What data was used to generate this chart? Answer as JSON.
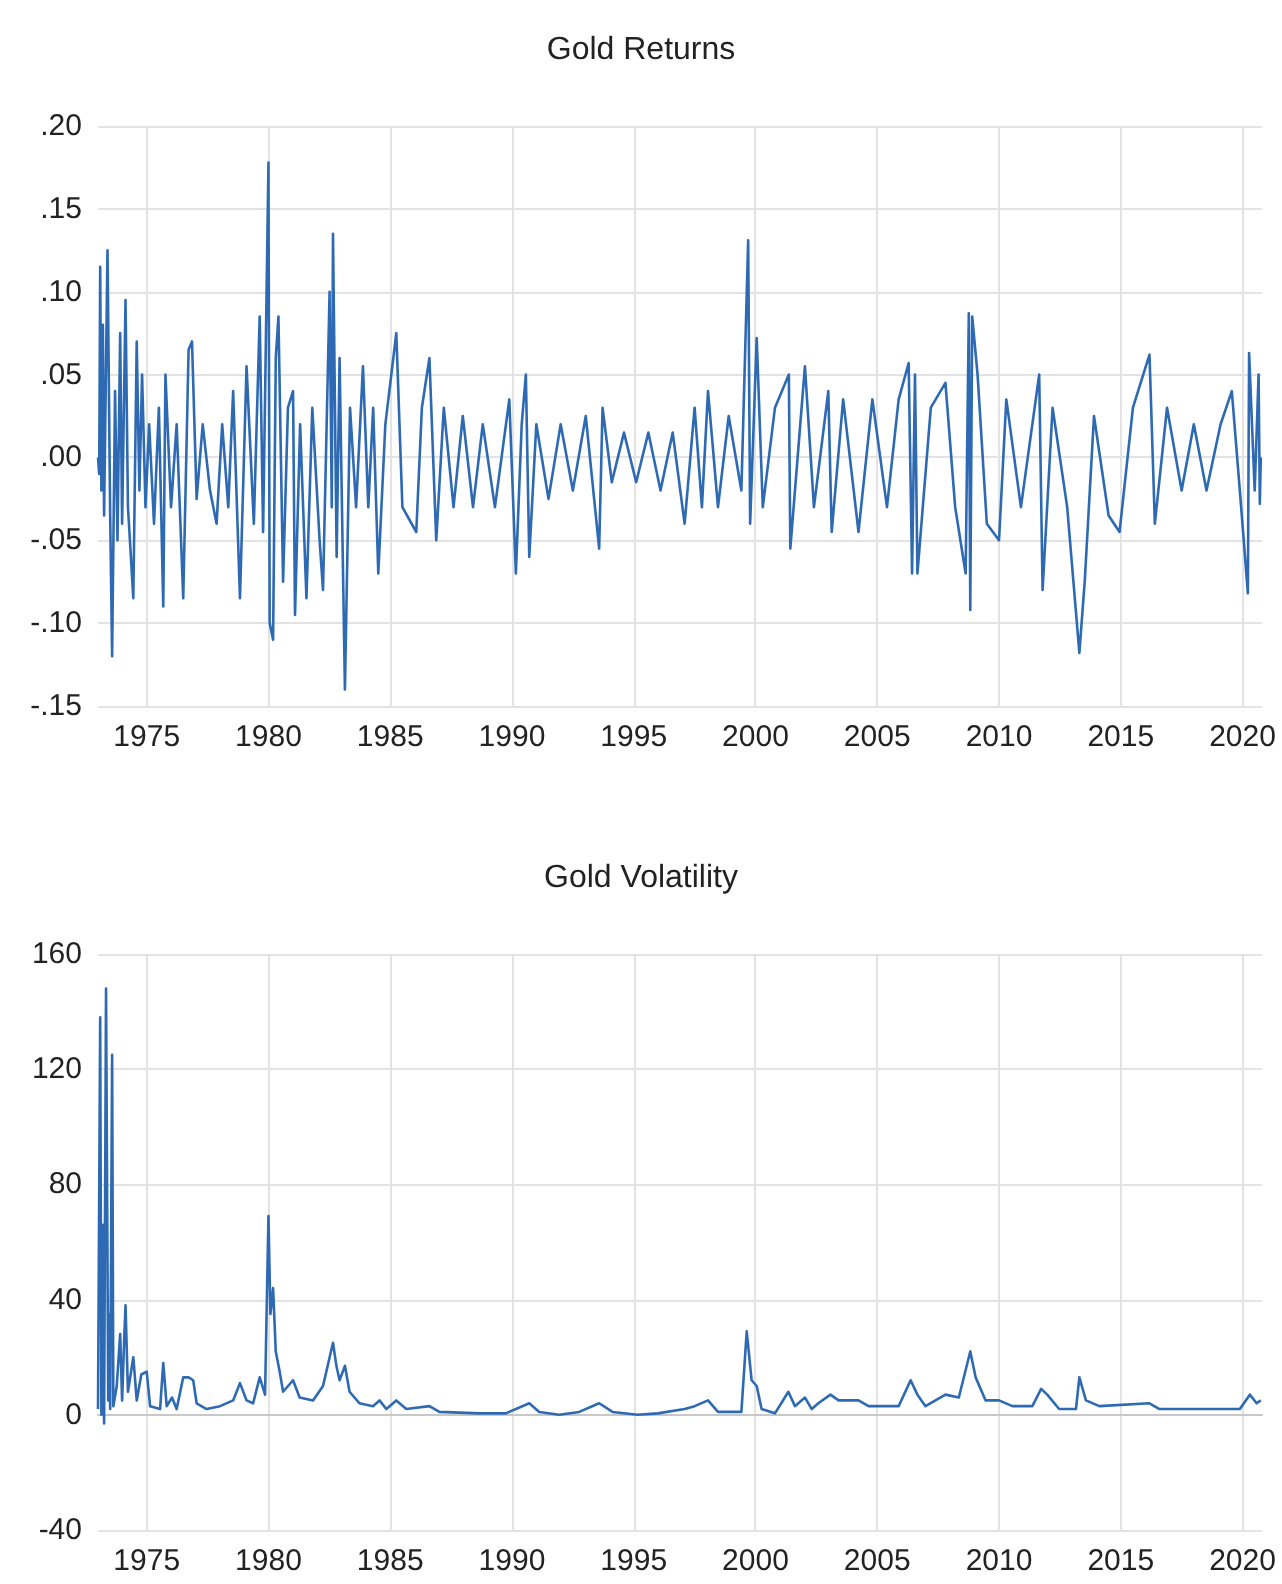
{
  "chart_data": [
    {
      "type": "line",
      "title": "Gold Returns",
      "marker": "none",
      "grid": true,
      "xlim": [
        1973,
        2020.8
      ],
      "xticks": [
        1975,
        1980,
        1985,
        1990,
        1995,
        2000,
        2005,
        2010,
        2015,
        2020
      ],
      "ylim": [
        -0.15,
        0.2
      ],
      "yticks": [
        {
          "value": -0.15,
          "label": "-.15"
        },
        {
          "value": -0.1,
          "label": "-.10"
        },
        {
          "value": -0.05,
          "label": "-.05"
        },
        {
          "value": 0,
          "label": ".00"
        },
        {
          "value": 0.05,
          "label": ".05"
        },
        {
          "value": 0.1,
          "label": ".10"
        },
        {
          "value": 0.15,
          "label": ".15"
        },
        {
          "value": 0.2,
          "label": ".20"
        }
      ],
      "x": [
        1973.0,
        1973.05,
        1973.09,
        1973.14,
        1973.2,
        1973.25,
        1973.39,
        1973.5,
        1973.58,
        1973.7,
        1973.8,
        1973.91,
        1973.99,
        1974.13,
        1974.23,
        1974.45,
        1974.59,
        1974.7,
        1974.81,
        1974.95,
        1975.1,
        1975.3,
        1975.5,
        1975.68,
        1975.77,
        1976.0,
        1976.23,
        1976.5,
        1976.72,
        1976.86,
        1977.05,
        1977.3,
        1977.6,
        1977.87,
        1978.1,
        1978.35,
        1978.55,
        1978.83,
        1979.1,
        1979.4,
        1979.64,
        1979.78,
        1980.0,
        1980.05,
        1980.19,
        1980.3,
        1980.41,
        1980.6,
        1980.8,
        1981.01,
        1981.09,
        1981.3,
        1981.56,
        1981.8,
        1982.1,
        1982.24,
        1982.51,
        1982.6,
        1982.65,
        1982.8,
        1982.92,
        1983.14,
        1983.35,
        1983.6,
        1983.88,
        1984.1,
        1984.3,
        1984.51,
        1984.8,
        1985.25,
        1985.5,
        1986.07,
        1986.3,
        1986.61,
        1986.89,
        1987.2,
        1987.6,
        1987.98,
        1988.4,
        1988.8,
        1989.3,
        1989.89,
        1990.16,
        1990.4,
        1990.57,
        1990.71,
        1991.0,
        1991.5,
        1992.0,
        1992.5,
        1993.03,
        1993.58,
        1993.72,
        1994.1,
        1994.6,
        1995.1,
        1995.6,
        1996.1,
        1996.6,
        1997.09,
        1997.5,
        1997.8,
        1998.05,
        1998.46,
        1998.9,
        1999.42,
        1999.7,
        1999.78,
        2000.05,
        2000.3,
        2000.8,
        2001.37,
        2001.43,
        2002.03,
        2002.4,
        2002.99,
        2003.13,
        2003.6,
        2004.23,
        2004.8,
        2005.4,
        2005.88,
        2006.29,
        2006.43,
        2006.55,
        2006.65,
        2007.2,
        2007.8,
        2008.2,
        2008.63,
        2008.76,
        2008.82,
        2008.9,
        2009.12,
        2009.5,
        2010.0,
        2010.3,
        2010.9,
        2011.65,
        2011.79,
        2012.2,
        2012.8,
        2013.3,
        2013.52,
        2013.9,
        2014.5,
        2014.95,
        2015.5,
        2016.18,
        2016.4,
        2016.9,
        2017.5,
        2018.0,
        2018.52,
        2019.1,
        2019.56,
        2019.89,
        2020.22,
        2020.27,
        2020.5,
        2020.66,
        2020.71,
        2020.75
      ],
      "series": [
        {
          "color": "#2e6ab3",
          "values": [
            0.0,
            -0.01,
            0.115,
            -0.02,
            0.08,
            -0.035,
            0.125,
            -0.035,
            -0.12,
            0.04,
            -0.05,
            0.075,
            -0.04,
            0.095,
            -0.03,
            -0.085,
            0.07,
            -0.02,
            0.05,
            -0.03,
            0.02,
            -0.04,
            0.03,
            -0.09,
            0.05,
            -0.03,
            0.02,
            -0.085,
            0.065,
            0.07,
            -0.025,
            0.02,
            -0.02,
            -0.04,
            0.02,
            -0.03,
            0.04,
            -0.085,
            0.055,
            -0.04,
            0.085,
            -0.045,
            0.178,
            -0.1,
            -0.11,
            0.06,
            0.085,
            -0.075,
            0.03,
            0.04,
            -0.095,
            0.02,
            -0.085,
            0.03,
            -0.05,
            -0.08,
            0.1,
            -0.03,
            0.135,
            -0.06,
            0.06,
            -0.14,
            0.03,
            -0.03,
            0.055,
            -0.03,
            0.03,
            -0.07,
            0.02,
            0.075,
            -0.03,
            -0.045,
            0.03,
            0.06,
            -0.05,
            0.03,
            -0.03,
            0.025,
            -0.03,
            0.02,
            -0.03,
            0.035,
            -0.07,
            0.02,
            0.05,
            -0.06,
            0.02,
            -0.025,
            0.02,
            -0.02,
            0.025,
            -0.055,
            0.03,
            -0.015,
            0.015,
            -0.015,
            0.015,
            -0.02,
            0.015,
            -0.04,
            0.03,
            -0.03,
            0.04,
            -0.03,
            0.025,
            -0.02,
            0.131,
            -0.04,
            0.072,
            -0.03,
            0.03,
            0.05,
            -0.055,
            0.055,
            -0.03,
            0.04,
            -0.045,
            0.035,
            -0.045,
            0.035,
            -0.03,
            0.035,
            0.057,
            -0.07,
            0.05,
            -0.07,
            0.03,
            0.045,
            -0.03,
            -0.07,
            0.087,
            -0.092,
            0.085,
            0.05,
            -0.04,
            -0.05,
            0.035,
            -0.03,
            0.05,
            -0.08,
            0.03,
            -0.03,
            -0.118,
            -0.075,
            0.025,
            -0.035,
            -0.045,
            0.03,
            0.062,
            -0.04,
            0.03,
            -0.02,
            0.02,
            -0.02,
            0.02,
            0.04,
            -0.02,
            -0.082,
            0.063,
            -0.02,
            0.05,
            -0.028,
            0.0
          ]
        }
      ]
    },
    {
      "type": "line",
      "title": "Gold Volatility",
      "marker": "none",
      "grid": true,
      "xlim": [
        1973,
        2020.8
      ],
      "xticks": [
        1975,
        1980,
        1985,
        1990,
        1995,
        2000,
        2005,
        2010,
        2015,
        2020
      ],
      "ylim": [
        -40,
        160
      ],
      "yticks": [
        -40,
        0,
        40,
        80,
        120,
        160
      ],
      "x": [
        1973.0,
        1973.09,
        1973.14,
        1973.2,
        1973.25,
        1973.33,
        1973.42,
        1973.44,
        1973.5,
        1973.58,
        1973.63,
        1973.77,
        1973.91,
        1973.99,
        1974.07,
        1974.13,
        1974.23,
        1974.45,
        1974.59,
        1974.78,
        1975.0,
        1975.14,
        1975.55,
        1975.68,
        1975.82,
        1976.04,
        1976.23,
        1976.5,
        1976.72,
        1976.91,
        1977.05,
        1977.46,
        1978.01,
        1978.55,
        1978.83,
        1979.1,
        1979.37,
        1979.64,
        1979.86,
        1980.0,
        1980.08,
        1980.19,
        1980.3,
        1980.46,
        1980.6,
        1981.01,
        1981.28,
        1981.83,
        1982.24,
        1982.65,
        1982.79,
        1982.92,
        1983.14,
        1983.33,
        1983.74,
        1984.29,
        1984.56,
        1984.84,
        1985.25,
        1985.66,
        1986.61,
        1987.02,
        1988.66,
        1989.75,
        1990.71,
        1991.12,
        1991.94,
        1992.76,
        1993.58,
        1994.13,
        1995.16,
        1995.99,
        1997.09,
        1997.5,
        1998.05,
        1998.46,
        1999.42,
        1999.64,
        1999.84,
        2000.05,
        2000.25,
        2000.8,
        2001.35,
        2001.62,
        2002.03,
        2002.31,
        2002.58,
        2003.08,
        2003.41,
        2004.23,
        2004.64,
        2005.88,
        2006.37,
        2006.65,
        2006.98,
        2007.8,
        2008.35,
        2008.82,
        2009.04,
        2009.45,
        2010.0,
        2010.55,
        2011.37,
        2011.73,
        2011.98,
        2012.47,
        2013.16,
        2013.3,
        2013.57,
        2014.12,
        2016.18,
        2016.59,
        2018.52,
        2019.89,
        2020.3,
        2020.58,
        2020.75
      ],
      "series": [
        {
          "color": "#2e6ab3",
          "values": [
            2,
            138,
            0,
            66,
            -3,
            148,
            5,
            35,
            2,
            125,
            3,
            10,
            28,
            5,
            25,
            38,
            8,
            20,
            5,
            14,
            15,
            3,
            2,
            18,
            3,
            6,
            2,
            13,
            13,
            12,
            4,
            2,
            3,
            5,
            11,
            5,
            4,
            13,
            7,
            69,
            35,
            44,
            22,
            15,
            8,
            12,
            6,
            5,
            10,
            25,
            17,
            12,
            17,
            8,
            4,
            3,
            5,
            2,
            5,
            2,
            3,
            1,
            0.5,
            0.5,
            4,
            1,
            0,
            1,
            4,
            1,
            0,
            0.5,
            2,
            3,
            5,
            1,
            1,
            29,
            12,
            10,
            2,
            0.5,
            8,
            3,
            6,
            2,
            4,
            7,
            5,
            5,
            3,
            3,
            12,
            7,
            3,
            7,
            6,
            22,
            13,
            5,
            5,
            3,
            3,
            9,
            7,
            2,
            2,
            13,
            5,
            3,
            4,
            2,
            2,
            2,
            7,
            4,
            5
          ]
        }
      ]
    }
  ]
}
